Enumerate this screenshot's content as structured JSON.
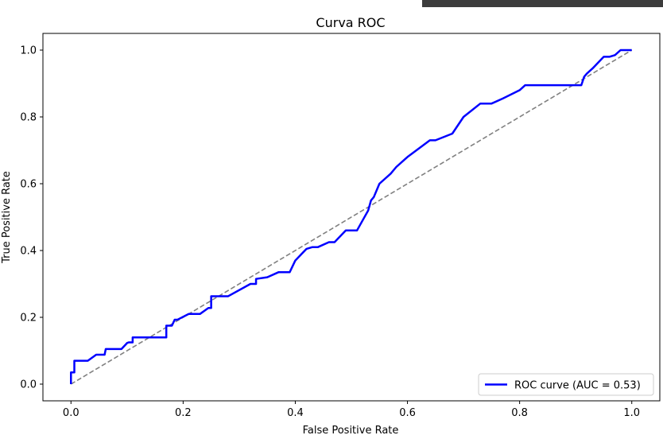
{
  "window": {
    "bar_color": "#3c3c3c"
  },
  "chart_data": {
    "type": "line",
    "title": "Curva ROC",
    "xlabel": "False Positive Rate",
    "ylabel": "True Positive Rate",
    "xlim": [
      -0.05,
      1.05
    ],
    "ylim": [
      -0.05,
      1.05
    ],
    "x_ticks": [
      "0.0",
      "0.2",
      "0.4",
      "0.6",
      "0.8",
      "1.0"
    ],
    "y_ticks": [
      "0.0",
      "0.2",
      "0.4",
      "0.6",
      "0.8",
      "1.0"
    ],
    "legend_position": "lower-right",
    "grid": false,
    "series": [
      {
        "name": "ROC curve (AUC = 0.53)",
        "color": "#0000ff",
        "style": "solid",
        "x": [
          0.0,
          0.0,
          0.006,
          0.006,
          0.03,
          0.045,
          0.06,
          0.062,
          0.09,
          0.1,
          0.103,
          0.11,
          0.11,
          0.13,
          0.17,
          0.17,
          0.18,
          0.185,
          0.19,
          0.21,
          0.22,
          0.23,
          0.245,
          0.25,
          0.25,
          0.28,
          0.32,
          0.33,
          0.33,
          0.35,
          0.37,
          0.39,
          0.4,
          0.42,
          0.43,
          0.44,
          0.46,
          0.47,
          0.49,
          0.51,
          0.52,
          0.53,
          0.535,
          0.54,
          0.55,
          0.57,
          0.58,
          0.6,
          0.64,
          0.65,
          0.68,
          0.7,
          0.73,
          0.75,
          0.77,
          0.8,
          0.81,
          0.88,
          0.9,
          0.91,
          0.915,
          0.92,
          0.93,
          0.95,
          0.96,
          0.97,
          0.98,
          1.0
        ],
        "y": [
          0.0,
          0.035,
          0.035,
          0.07,
          0.07,
          0.088,
          0.088,
          0.105,
          0.105,
          0.123,
          0.125,
          0.125,
          0.14,
          0.14,
          0.14,
          0.175,
          0.175,
          0.193,
          0.193,
          0.21,
          0.21,
          0.21,
          0.228,
          0.228,
          0.263,
          0.263,
          0.3,
          0.3,
          0.315,
          0.32,
          0.335,
          0.335,
          0.37,
          0.405,
          0.41,
          0.41,
          0.425,
          0.425,
          0.46,
          0.46,
          0.49,
          0.52,
          0.55,
          0.56,
          0.6,
          0.63,
          0.65,
          0.68,
          0.73,
          0.73,
          0.75,
          0.8,
          0.84,
          0.84,
          0.855,
          0.88,
          0.895,
          0.895,
          0.895,
          0.895,
          0.92,
          0.93,
          0.945,
          0.98,
          0.98,
          0.985,
          1.0,
          1.0
        ]
      },
      {
        "name": "",
        "color": "#808080",
        "style": "dashed",
        "x": [
          0.0,
          1.0
        ],
        "y": [
          0.0,
          1.0
        ]
      }
    ]
  }
}
